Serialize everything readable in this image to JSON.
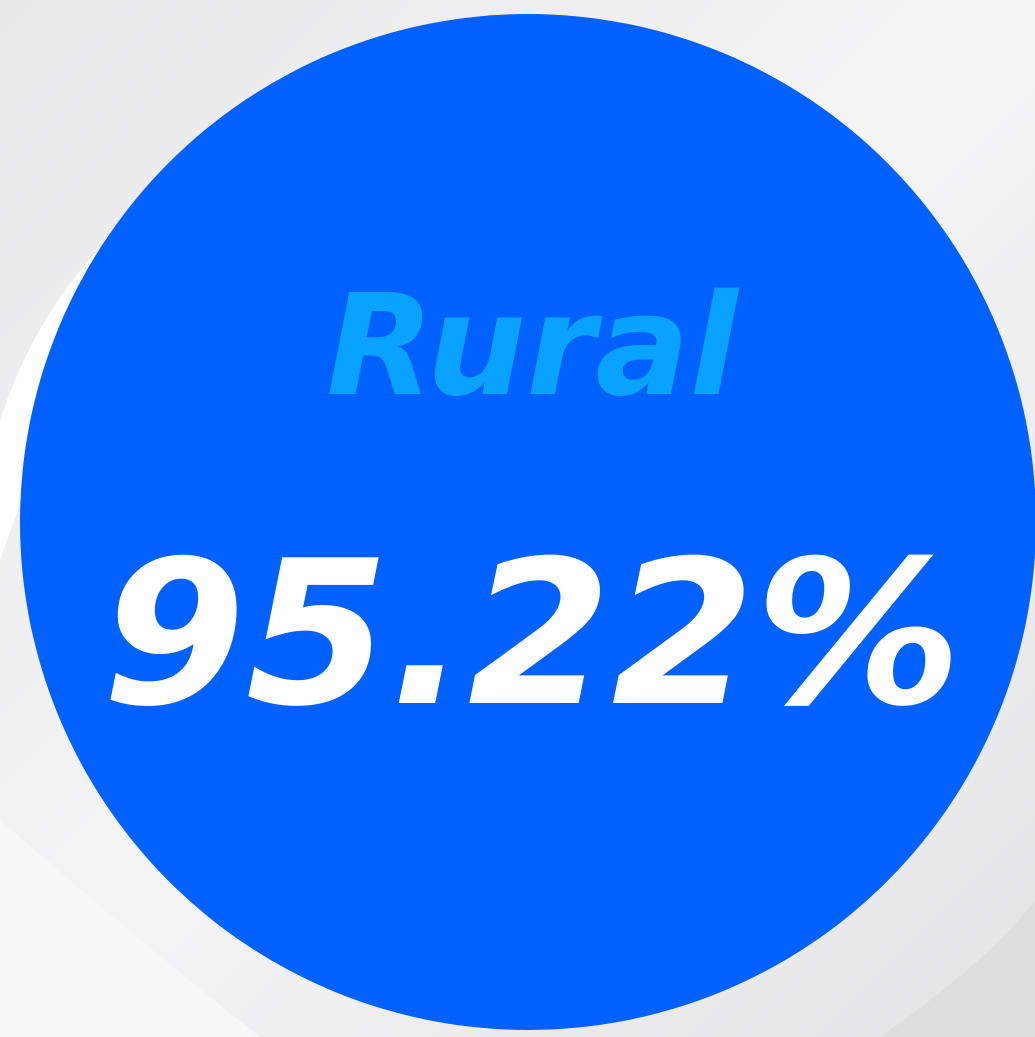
{
  "label": "Rural",
  "stat": "95.22%"
}
